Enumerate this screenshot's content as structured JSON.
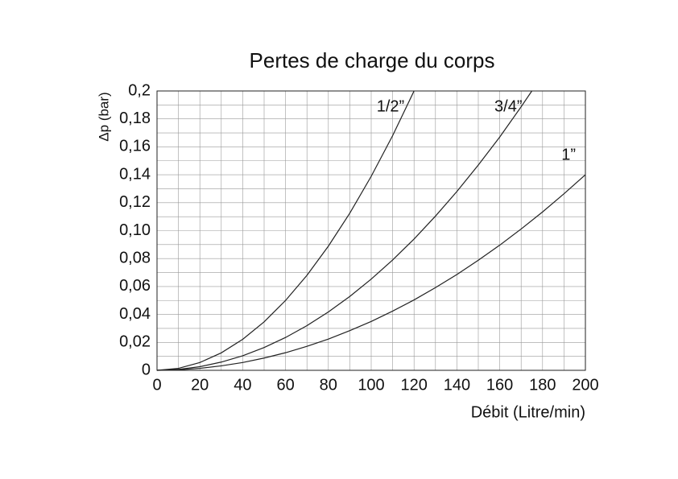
{
  "chart_data": {
    "type": "line",
    "title": "Pertes de charge du corps",
    "xlabel": "Débit (Litre/min)",
    "ylabel": "Δp (bar)",
    "xlim": [
      0,
      200
    ],
    "xticks": [
      0,
      20,
      40,
      60,
      80,
      100,
      120,
      140,
      160,
      180,
      200
    ],
    "ylim": [
      0,
      0.2
    ],
    "yticks": [
      0,
      {
        "value": 0.02,
        "label": "0,02"
      },
      {
        "value": 0.04,
        "label": "0,04"
      },
      {
        "value": 0.06,
        "label": "0,06"
      },
      {
        "value": 0.08,
        "label": "0,08"
      },
      {
        "value": 0.1,
        "label": "0,10"
      },
      {
        "value": 0.12,
        "label": "0,12"
      },
      {
        "value": 0.14,
        "label": "0,14"
      },
      {
        "value": 0.16,
        "label": "0,16"
      },
      {
        "value": 0.18,
        "label": "0,18"
      },
      {
        "value": 0.2,
        "label": "0,2"
      }
    ],
    "grid": true,
    "series": [
      {
        "name": "1/2”",
        "color": "#222222",
        "x": [
          0,
          10,
          20,
          30,
          40,
          50,
          60,
          70,
          80,
          90,
          100,
          110,
          120
        ],
        "values": [
          0,
          0.0014,
          0.0056,
          0.0125,
          0.0222,
          0.0347,
          0.05,
          0.068,
          0.0889,
          0.1125,
          0.1389,
          0.168,
          0.2
        ]
      },
      {
        "name": "3/4”",
        "color": "#222222",
        "x": [
          0,
          10,
          20,
          30,
          40,
          50,
          60,
          70,
          80,
          90,
          100,
          110,
          120,
          130,
          140,
          150,
          160,
          170,
          175
        ],
        "values": [
          0,
          0.0007,
          0.0026,
          0.0059,
          0.0104,
          0.0163,
          0.0235,
          0.032,
          0.0418,
          0.0529,
          0.0653,
          0.079,
          0.094,
          0.1104,
          0.128,
          0.147,
          0.167,
          0.1887,
          0.2
        ]
      },
      {
        "name": "1”",
        "color": "#222222",
        "x": [
          0,
          10,
          20,
          30,
          40,
          50,
          60,
          70,
          80,
          90,
          100,
          110,
          120,
          130,
          140,
          150,
          160,
          170,
          180,
          190,
          200
        ],
        "values": [
          0,
          0.00035,
          0.0014,
          0.0032,
          0.0056,
          0.0088,
          0.0126,
          0.0172,
          0.0224,
          0.0284,
          0.035,
          0.0424,
          0.0504,
          0.0592,
          0.0686,
          0.0788,
          0.0896,
          0.1012,
          0.1134,
          0.1264,
          0.14
        ]
      }
    ]
  }
}
